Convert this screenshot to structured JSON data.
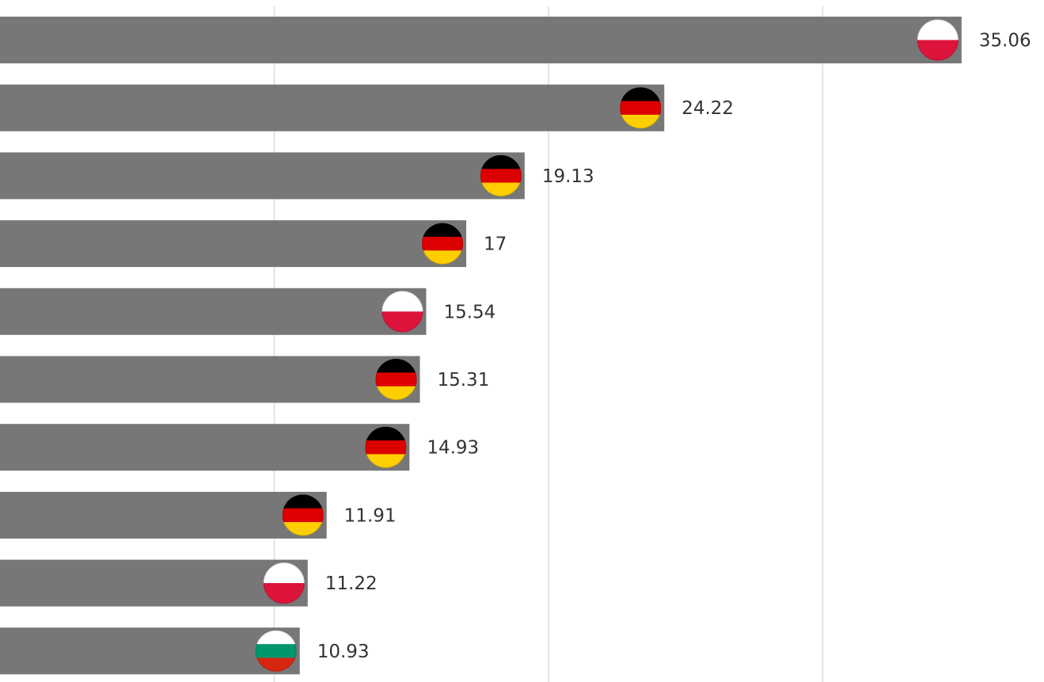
{
  "chart_data": {
    "type": "bar",
    "orientation": "horizontal",
    "xlim": [
      0,
      38
    ],
    "gridlines": [
      10,
      20,
      30
    ],
    "grid": true,
    "bar_color": "#777777",
    "grid_color": "#dddddd",
    "bars": [
      {
        "value": 35.06,
        "label": "35.06",
        "flag": "poland-flag-icon"
      },
      {
        "value": 24.22,
        "label": "24.22",
        "flag": "germany-flag-icon"
      },
      {
        "value": 19.13,
        "label": "19.13",
        "flag": "germany-flag-icon"
      },
      {
        "value": 17,
        "label": "17",
        "flag": "germany-flag-icon"
      },
      {
        "value": 15.54,
        "label": "15.54",
        "flag": "poland-flag-icon"
      },
      {
        "value": 15.31,
        "label": "15.31",
        "flag": "germany-flag-icon"
      },
      {
        "value": 14.93,
        "label": "14.93",
        "flag": "germany-flag-icon"
      },
      {
        "value": 11.91,
        "label": "11.91",
        "flag": "germany-flag-icon"
      },
      {
        "value": 11.22,
        "label": "11.22",
        "flag": "poland-flag-icon"
      },
      {
        "value": 10.93,
        "label": "10.93",
        "flag": "bulgaria-flag-icon"
      }
    ],
    "flag_colors": {
      "poland-flag-icon": [
        "#ffffff",
        "#dc143c"
      ],
      "germany-flag-icon": [
        "#000000",
        "#dd0000",
        "#ffce00"
      ],
      "bulgaria-flag-icon": [
        "#ffffff",
        "#00966e",
        "#d62612"
      ]
    }
  }
}
